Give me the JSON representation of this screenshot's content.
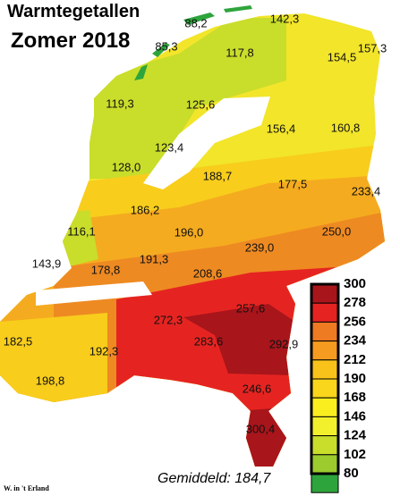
{
  "title": "Warmtegetallen",
  "subtitle": "Zomer 2018",
  "average": "Gemiddeld: 184,7",
  "credit": "W. in 't Erland",
  "labels": [
    "88,2",
    "142,3",
    "85,3",
    "117,8",
    "154,5",
    "157,3",
    "119,3",
    "125,6",
    "156,4",
    "160,8",
    "123,4",
    "128,0",
    "188,7",
    "177,5",
    "233,4",
    "186,2",
    "116,1",
    "196,0",
    "239,0",
    "250,0",
    "143,9",
    "178,8",
    "191,3",
    "208,6",
    "272,3",
    "257,6",
    "182,5",
    "192,3",
    "283,6",
    "292,9",
    "198,8",
    "246,6",
    "300,4"
  ],
  "legend": {
    "ticks": [
      300,
      278,
      256,
      234,
      212,
      190,
      168,
      146,
      124,
      102,
      80
    ],
    "colors": [
      "#a8151b",
      "#e52421",
      "#ee7a22",
      "#f59b1f",
      "#f8c21a",
      "#f9d51c",
      "#fbee1f",
      "#f2f02c",
      "#c9dd2b",
      "#9ccb2e",
      "#2ea43c"
    ]
  }
}
